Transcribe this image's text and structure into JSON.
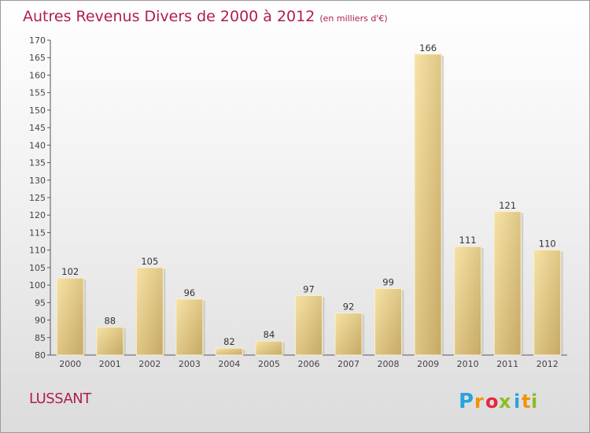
{
  "header": {
    "title": "Autres Revenus Divers de 2000 à 2012",
    "unit": "(en milliers d'€)"
  },
  "location": "LUSSANT",
  "logo": {
    "text": "Proxiti",
    "letters": [
      "P",
      "r",
      "o",
      "x",
      "i",
      "t",
      "i"
    ],
    "colors": [
      "#2aa3dc",
      "#f39200",
      "#e5273f",
      "#8cbd24",
      "#2aa3dc",
      "#f39200",
      "#8cbd24"
    ]
  },
  "colors": {
    "title": "#b01e4a",
    "bar_light": "#f4dc9a",
    "bar_dark": "#c9ad68"
  },
  "chart_data": {
    "type": "bar",
    "categories": [
      "2000",
      "2001",
      "2002",
      "2003",
      "2004",
      "2005",
      "2006",
      "2007",
      "2008",
      "2009",
      "2010",
      "2011",
      "2012"
    ],
    "values": [
      102,
      88,
      105,
      96,
      82,
      84,
      97,
      92,
      99,
      166,
      111,
      121,
      110
    ],
    "ylim": [
      80,
      170
    ],
    "yticks": [
      80,
      85,
      90,
      95,
      100,
      105,
      110,
      115,
      120,
      125,
      130,
      135,
      140,
      145,
      150,
      155,
      160,
      165,
      170
    ],
    "grid": false
  }
}
